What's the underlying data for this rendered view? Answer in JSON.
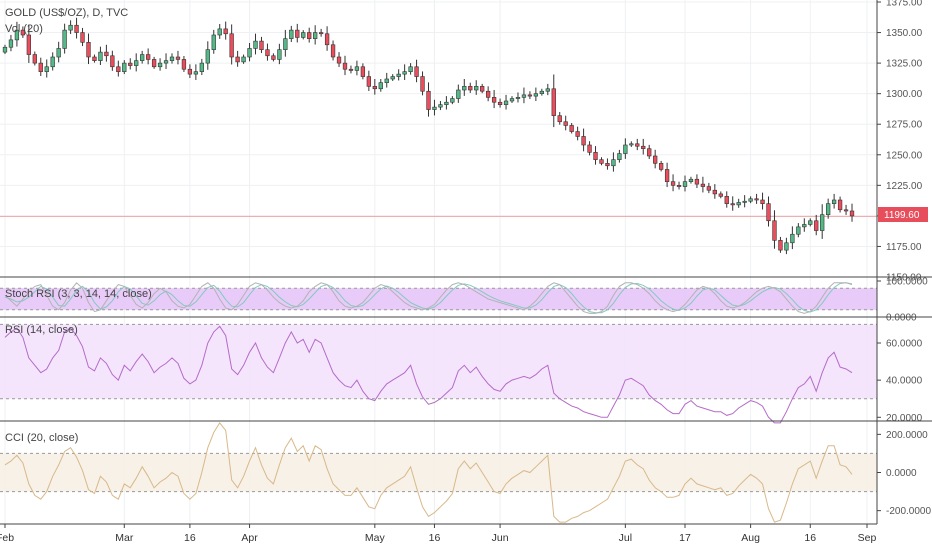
{
  "chart_data": {
    "type": "candlestick",
    "symbol_title": "GOLD (US$/OZ), D, TVC",
    "volume_label": "Vol (20)",
    "x_labels": [
      "Feb",
      "Mar",
      "16",
      "Apr",
      "May",
      "16",
      "Jun",
      "Jul",
      "17",
      "Aug",
      "16",
      "Sep"
    ],
    "last_price": "1199.60",
    "colors": {
      "up": "#53b987",
      "down": "#eb4d5c",
      "stoch_k": "#b3b3b3",
      "stoch_d": "#82c9c3",
      "rsi_line": "#b56bc9",
      "cci_line": "#d8b98a",
      "stoch_band": "#e4c2f7",
      "rsi_band": "#f2e0fb",
      "cci_band": "#f6efe3",
      "price_line": "#f0a3a3"
    },
    "price": {
      "ylim": [
        1150,
        1375
      ],
      "ticks": [
        "1375.00",
        "1350.00",
        "1325.00",
        "1300.00",
        "1275.00",
        "1250.00",
        "1225.00",
        "1200.00",
        "1175.00",
        "1150.00"
      ],
      "closes": [
        1338,
        1344,
        1352,
        1348,
        1332,
        1325,
        1318,
        1322,
        1330,
        1337,
        1352,
        1356,
        1350,
        1342,
        1330,
        1327,
        1334,
        1331,
        1322,
        1318,
        1325,
        1323,
        1327,
        1332,
        1328,
        1322,
        1325,
        1327,
        1330,
        1328,
        1320,
        1316,
        1318,
        1325,
        1336,
        1348,
        1353,
        1349,
        1330,
        1326,
        1330,
        1337,
        1343,
        1336,
        1331,
        1328,
        1336,
        1345,
        1352,
        1346,
        1350,
        1345,
        1350,
        1349,
        1340,
        1330,
        1325,
        1320,
        1319,
        1322,
        1314,
        1306,
        1304,
        1309,
        1312,
        1314,
        1316,
        1318,
        1322,
        1314,
        1302,
        1287,
        1289,
        1291,
        1293,
        1296,
        1303,
        1306,
        1303,
        1306,
        1302,
        1297,
        1293,
        1291,
        1294,
        1296,
        1297,
        1299,
        1298,
        1300,
        1302,
        1304,
        1282,
        1277,
        1274,
        1269,
        1265,
        1258,
        1252,
        1246,
        1243,
        1241,
        1246,
        1251,
        1258,
        1259,
        1257,
        1255,
        1249,
        1243,
        1238,
        1228,
        1225,
        1224,
        1228,
        1230,
        1226,
        1224,
        1221,
        1218,
        1216,
        1210,
        1209,
        1211,
        1212,
        1214,
        1213,
        1210,
        1196,
        1180,
        1172,
        1178,
        1185,
        1191,
        1193,
        1196,
        1188,
        1201,
        1210,
        1213,
        1205,
        1204,
        1200
      ],
      "ohlc_hint": "closes drive candle bodies; wicks extend ~25% of body range"
    },
    "stoch_rsi": {
      "label": "Stoch RSI (3, 3, 14, 14, close)",
      "ylim": [
        0,
        100
      ],
      "ticks": [
        "100.0000",
        "0.0000"
      ],
      "band": [
        20,
        80
      ],
      "k": [
        60,
        45,
        30,
        50,
        70,
        85,
        90,
        60,
        30,
        20,
        40,
        75,
        95,
        80,
        40,
        15,
        20,
        45,
        70,
        90,
        85,
        60,
        35,
        25,
        40,
        65,
        80,
        70,
        45,
        30,
        25,
        35,
        60,
        85,
        95,
        80,
        50,
        25,
        20,
        35,
        60,
        85,
        95,
        90,
        75,
        55,
        40,
        30,
        25,
        30,
        45,
        70,
        85,
        95,
        90,
        70,
        45,
        30,
        25,
        30,
        40,
        60,
        80,
        90,
        85,
        70,
        55,
        40,
        30,
        25,
        20,
        25,
        35,
        55,
        75,
        90,
        95,
        90,
        80,
        70,
        60,
        50,
        45,
        40,
        35,
        30,
        25,
        20,
        30,
        45,
        65,
        85,
        95,
        90,
        70,
        50,
        30,
        15,
        10,
        10,
        15,
        30,
        60,
        85,
        95,
        95,
        90,
        80,
        65,
        45,
        30,
        20,
        15,
        20,
        35,
        55,
        75,
        85,
        80,
        65,
        45,
        30,
        25,
        30,
        40,
        55,
        70,
        80,
        85,
        80,
        70,
        50,
        30,
        15,
        10,
        15,
        30,
        55,
        80,
        95,
        95,
        95,
        90
      ],
      "d": [
        55,
        50,
        42,
        45,
        55,
        70,
        85,
        78,
        55,
        32,
        30,
        50,
        75,
        85,
        70,
        40,
        22,
        28,
        45,
        70,
        85,
        78,
        58,
        38,
        33,
        45,
        62,
        72,
        62,
        45,
        32,
        30,
        42,
        62,
        82,
        88,
        72,
        48,
        30,
        28,
        40,
        62,
        82,
        90,
        85,
        72,
        55,
        42,
        32,
        28,
        35,
        50,
        68,
        85,
        90,
        82,
        65,
        45,
        32,
        28,
        32,
        45,
        62,
        78,
        86,
        80,
        68,
        54,
        40,
        32,
        25,
        22,
        28,
        40,
        58,
        75,
        88,
        92,
        88,
        80,
        70,
        60,
        52,
        45,
        40,
        35,
        30,
        25,
        25,
        33,
        48,
        68,
        85,
        90,
        82,
        65,
        45,
        28,
        15,
        12,
        12,
        20,
        38,
        62,
        82,
        92,
        93,
        88,
        78,
        62,
        45,
        32,
        22,
        18,
        25,
        38,
        58,
        75,
        80,
        75,
        60,
        45,
        33,
        30,
        35,
        45,
        58,
        70,
        78,
        82,
        78,
        65,
        48,
        30,
        18,
        14,
        20,
        38,
        62,
        82,
        93,
        95,
        92
      ]
    },
    "rsi": {
      "label": "RSI (14, close)",
      "ylim": [
        18,
        74
      ],
      "ticks": [
        "60.0000",
        "40.0000",
        "20.0000"
      ],
      "band": [
        30,
        70
      ],
      "values": [
        63,
        66,
        68,
        63,
        52,
        48,
        44,
        46,
        52,
        56,
        66,
        68,
        64,
        58,
        47,
        45,
        52,
        49,
        43,
        40,
        48,
        45,
        50,
        54,
        50,
        44,
        47,
        49,
        52,
        49,
        41,
        38,
        40,
        48,
        60,
        66,
        69,
        64,
        46,
        43,
        48,
        55,
        60,
        52,
        47,
        44,
        52,
        60,
        66,
        60,
        62,
        55,
        62,
        60,
        52,
        44,
        40,
        37,
        36,
        40,
        34,
        30,
        29,
        34,
        38,
        40,
        42,
        44,
        48,
        38,
        31,
        27,
        28,
        30,
        33,
        36,
        45,
        48,
        44,
        47,
        42,
        38,
        35,
        34,
        38,
        40,
        41,
        42,
        41,
        43,
        46,
        48,
        33,
        30,
        28,
        26,
        25,
        23,
        22,
        21,
        20,
        20,
        26,
        32,
        40,
        41,
        39,
        37,
        32,
        29,
        27,
        24,
        22,
        22,
        27,
        29,
        26,
        25,
        24,
        23,
        23,
        21,
        22,
        25,
        27,
        29,
        28,
        26,
        20,
        17,
        17,
        23,
        30,
        36,
        38,
        42,
        34,
        44,
        52,
        55,
        47,
        46,
        44
      ]
    },
    "cci": {
      "label": "CCI (20, close)",
      "ylim": [
        -270,
        270
      ],
      "ticks": [
        "200.0000",
        "0.0000",
        "-200.0000"
      ],
      "band": [
        -100,
        100
      ],
      "values": [
        40,
        60,
        90,
        50,
        -60,
        -120,
        -140,
        -100,
        -20,
        40,
        110,
        130,
        80,
        10,
        -90,
        -110,
        -20,
        -50,
        -120,
        -140,
        -60,
        -80,
        -30,
        30,
        -20,
        -80,
        -50,
        -30,
        0,
        -20,
        -110,
        -140,
        -110,
        0,
        130,
        210,
        260,
        220,
        -40,
        -80,
        -20,
        60,
        130,
        40,
        -30,
        -60,
        40,
        130,
        180,
        110,
        140,
        60,
        140,
        120,
        20,
        -60,
        -90,
        -120,
        -120,
        -80,
        -130,
        -180,
        -190,
        -120,
        -80,
        -60,
        -40,
        -20,
        30,
        -80,
        -180,
        -230,
        -210,
        -180,
        -150,
        -110,
        20,
        60,
        20,
        50,
        0,
        -50,
        -100,
        -110,
        -60,
        -30,
        -10,
        10,
        0,
        30,
        60,
        90,
        -230,
        -260,
        -260,
        -240,
        -230,
        -210,
        -200,
        -180,
        -160,
        -140,
        -80,
        -20,
        60,
        70,
        40,
        20,
        -40,
        -80,
        -100,
        -130,
        -130,
        -120,
        -60,
        -30,
        -60,
        -70,
        -80,
        -90,
        -80,
        -120,
        -110,
        -70,
        -40,
        -10,
        -30,
        -60,
        -190,
        -260,
        -250,
        -160,
        -60,
        20,
        40,
        60,
        -30,
        60,
        140,
        140,
        40,
        30,
        -10
      ]
    }
  }
}
